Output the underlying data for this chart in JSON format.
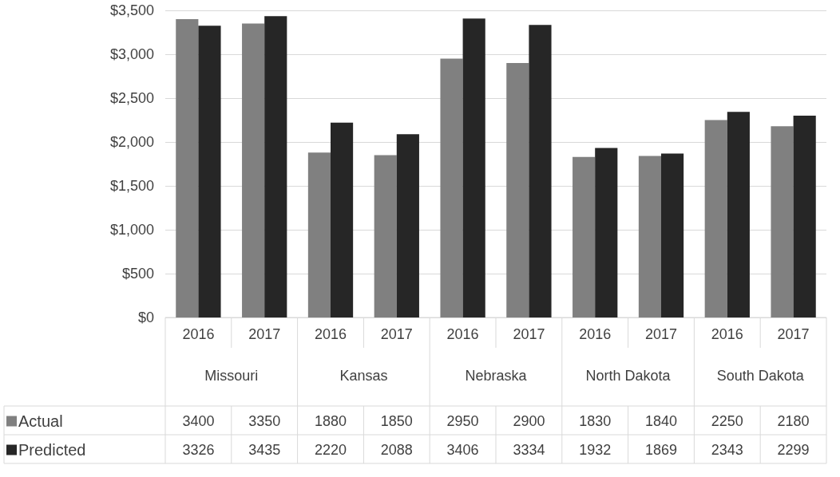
{
  "chart_data": {
    "type": "bar",
    "categories": [
      "2016",
      "2017",
      "2016",
      "2017",
      "2016",
      "2017",
      "2016",
      "2017",
      "2016",
      "2017"
    ],
    "annotations": [
      "Missouri",
      "Kansas",
      "Nebraska",
      "North Dakota",
      "South Dakota"
    ],
    "series": [
      {
        "name": "Actual",
        "color": "#808080",
        "values": [
          3400,
          3350,
          1880,
          1850,
          2950,
          2900,
          1830,
          1840,
          2250,
          2180
        ]
      },
      {
        "name": "Predicted",
        "color": "#262626",
        "values": [
          3326,
          3435,
          2220,
          2088,
          3406,
          3334,
          1932,
          1869,
          2343,
          2299
        ]
      }
    ],
    "ylim": [
      0,
      3500
    ],
    "yticks": [
      {
        "value": 0,
        "label": "$0"
      },
      {
        "value": 500,
        "label": "$500"
      },
      {
        "value": 1000,
        "label": "$1,000"
      },
      {
        "value": 1500,
        "label": "$1,500"
      },
      {
        "value": 2000,
        "label": "$2,000"
      },
      {
        "value": 2500,
        "label": "$2,500"
      },
      {
        "value": 3000,
        "label": "$3,000"
      },
      {
        "value": 3500,
        "label": "$3,500"
      }
    ],
    "grid": "y",
    "legend": "bottom left",
    "data_labels": true
  }
}
